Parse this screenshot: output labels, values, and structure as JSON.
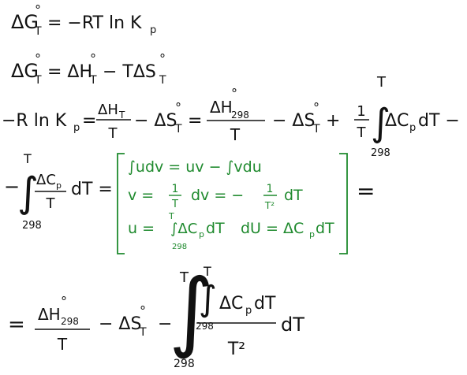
{
  "lines": {
    "line1": [
      "ΔG",
      "°",
      "T",
      "= −RT ln K",
      "p"
    ],
    "line2": [
      "ΔG",
      "°",
      "T",
      "= ΔH",
      "°",
      "T",
      "− TΔS",
      "°",
      "T"
    ],
    "line3": [
      "−R ln K",
      "p",
      "=",
      "ΔH",
      "T",
      "T",
      "− ΔS",
      "°",
      "T",
      "=",
      "ΔH",
      "°",
      "298",
      "T",
      "− ΔS",
      "°",
      "T",
      "+",
      "1",
      "T",
      "∫",
      "T",
      "298",
      "ΔC",
      "p",
      "dT −"
    ],
    "line4": [
      "−",
      "∫",
      "T",
      "298",
      "ΔC",
      "p",
      "T",
      "dT =",
      "="
    ],
    "bracket": [
      "∫udv = uv − ∫vdu",
      "v =",
      "1",
      "T",
      "dv = −",
      "1",
      "T²",
      "dT",
      "u =",
      "T",
      "∫ΔC",
      "p",
      "dT",
      "298",
      "dU = ΔC",
      "p",
      "dT"
    ],
    "line5": [
      "=",
      "ΔH",
      "°",
      "298",
      "T",
      "− ΔS",
      "°",
      "T",
      "−",
      "∫",
      "T",
      "298",
      "∫",
      "T",
      "298",
      "ΔC",
      "p",
      "dT",
      "T²",
      "dT"
    ]
  }
}
